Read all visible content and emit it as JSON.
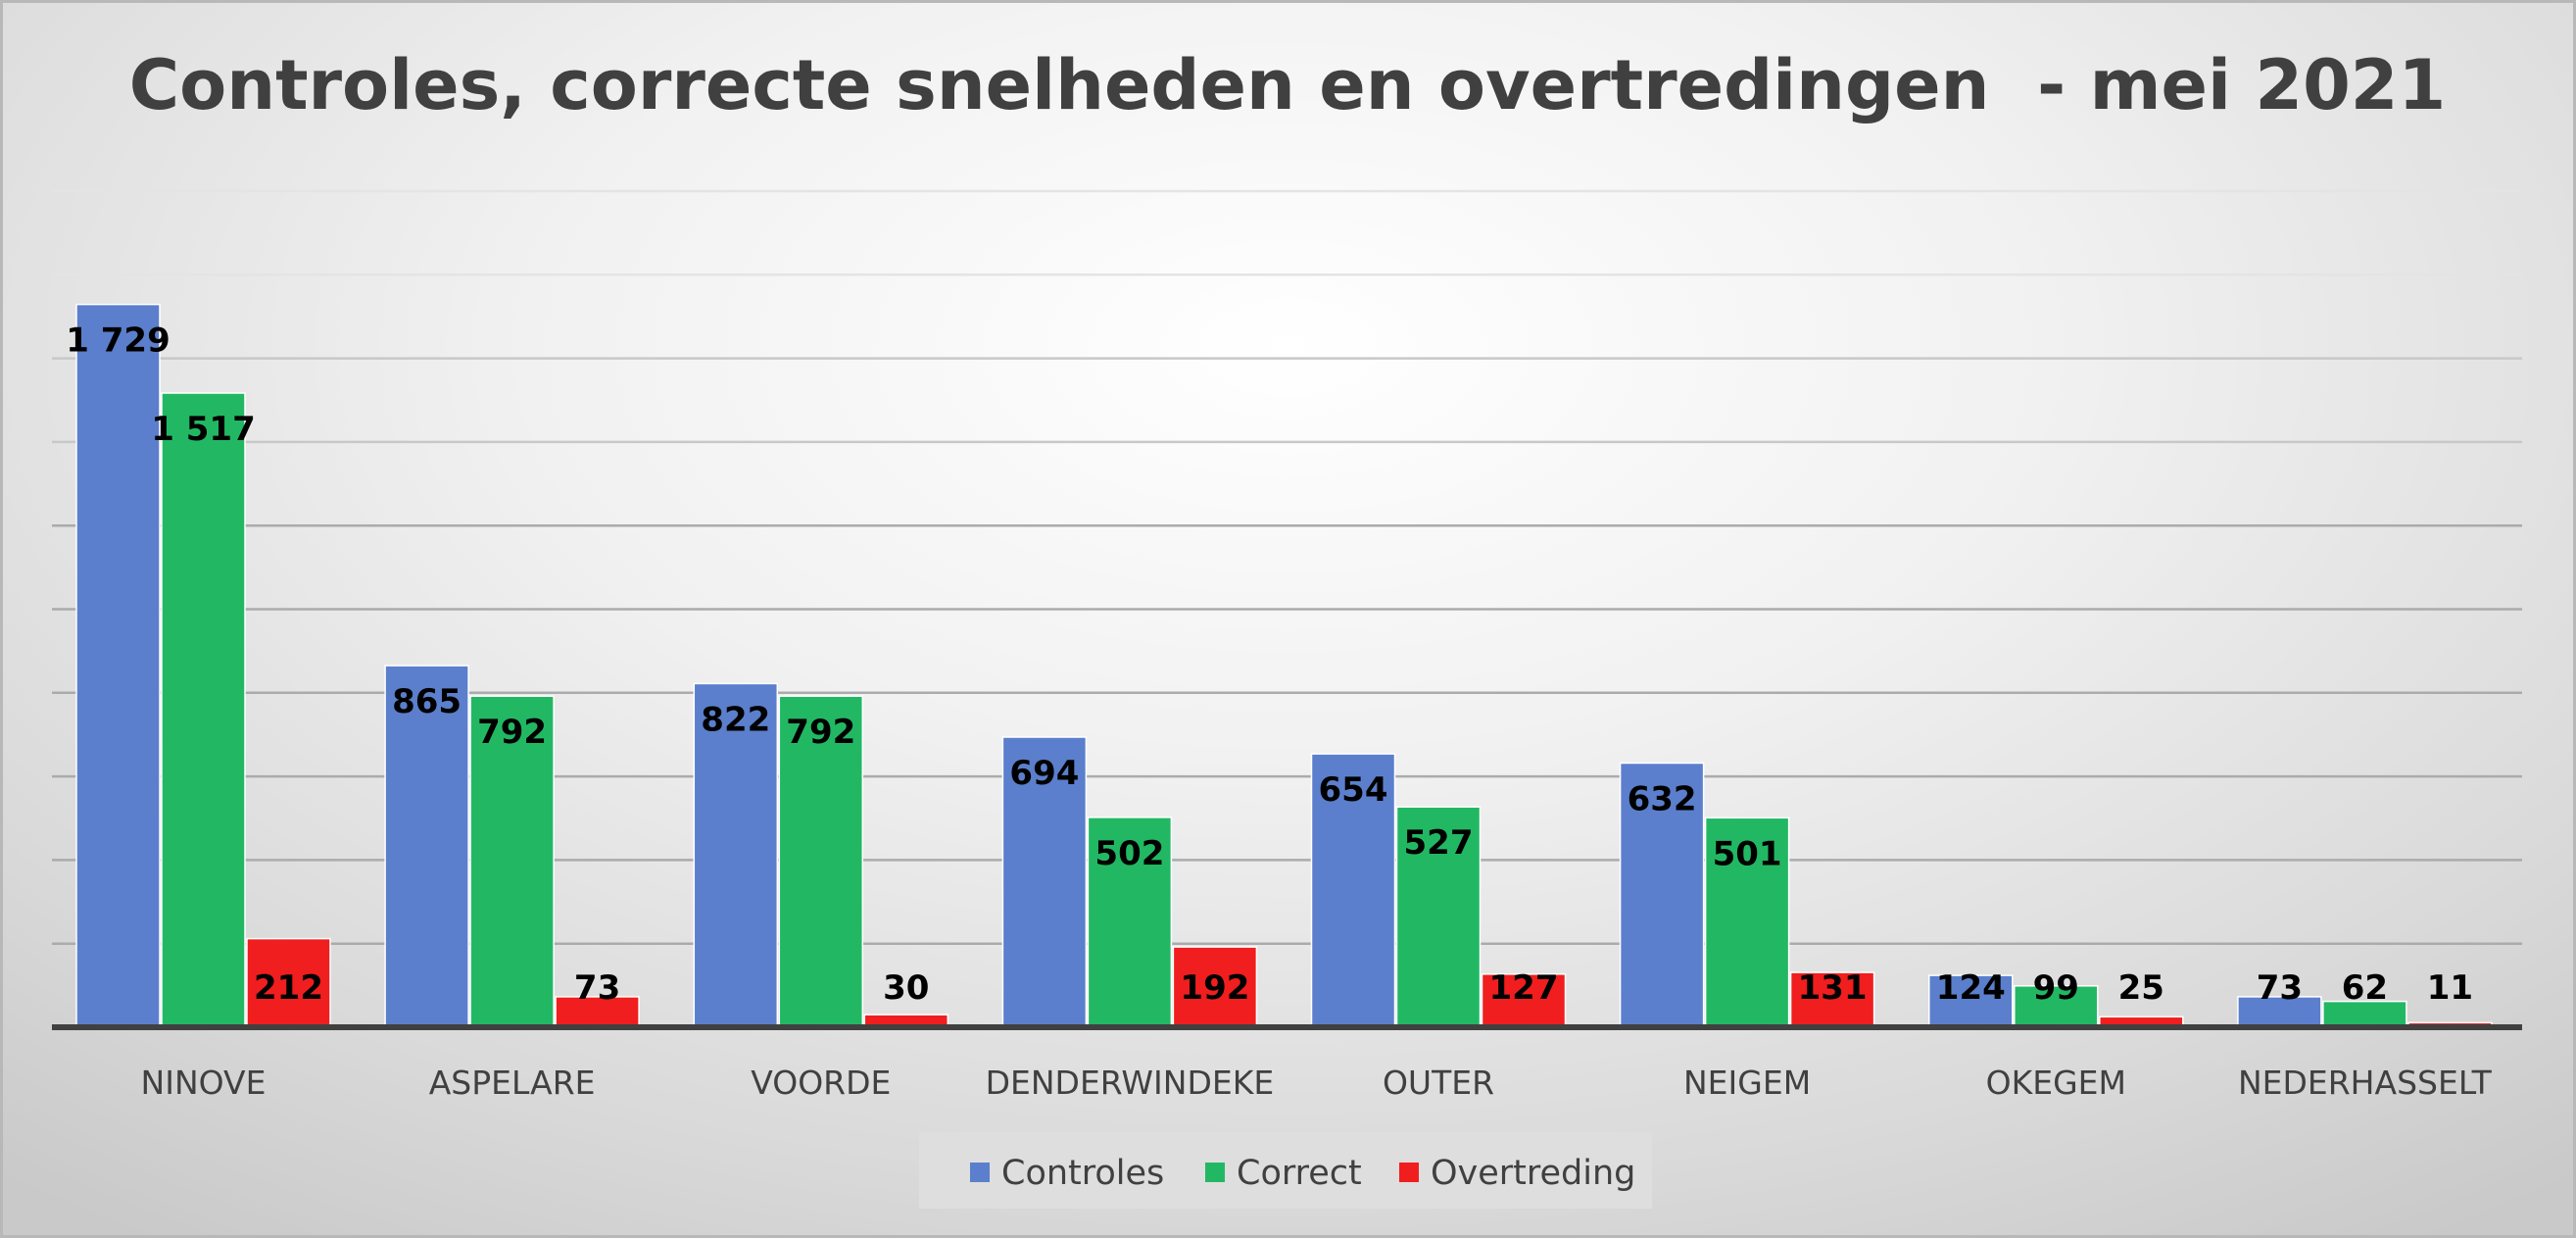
{
  "chart_data": {
    "type": "bar",
    "title": "Controles, correcte snelheden en overtredingen  - mei 2021",
    "categories": [
      "NINOVE",
      "ASPELARE",
      "VOORDE",
      "DENDERWINDEKE",
      "OUTER",
      "NEIGEM",
      "OKEGEM",
      "NEDERHASSELT"
    ],
    "series": [
      {
        "name": "Controles",
        "color": "#5b7fcc",
        "values": [
          1729,
          865,
          822,
          694,
          654,
          632,
          124,
          73
        ],
        "labels": [
          "1 729",
          "865",
          "822",
          "694",
          "654",
          "632",
          "124",
          "73"
        ]
      },
      {
        "name": "Correct",
        "color": "#22b863",
        "values": [
          1517,
          792,
          792,
          502,
          527,
          501,
          99,
          62
        ],
        "labels": [
          "1 517",
          "792",
          "792",
          "502",
          "527",
          "501",
          "99",
          "62"
        ]
      },
      {
        "name": "Overtreding",
        "color": "#f01e1e",
        "values": [
          212,
          73,
          30,
          192,
          127,
          131,
          25,
          11
        ],
        "labels": [
          "212",
          "73",
          "30",
          "192",
          "127",
          "131",
          "25",
          "11"
        ]
      }
    ],
    "ylim": [
      0,
      2000
    ],
    "ytick_step": 200,
    "grid": true,
    "legend_position": "bottom"
  }
}
